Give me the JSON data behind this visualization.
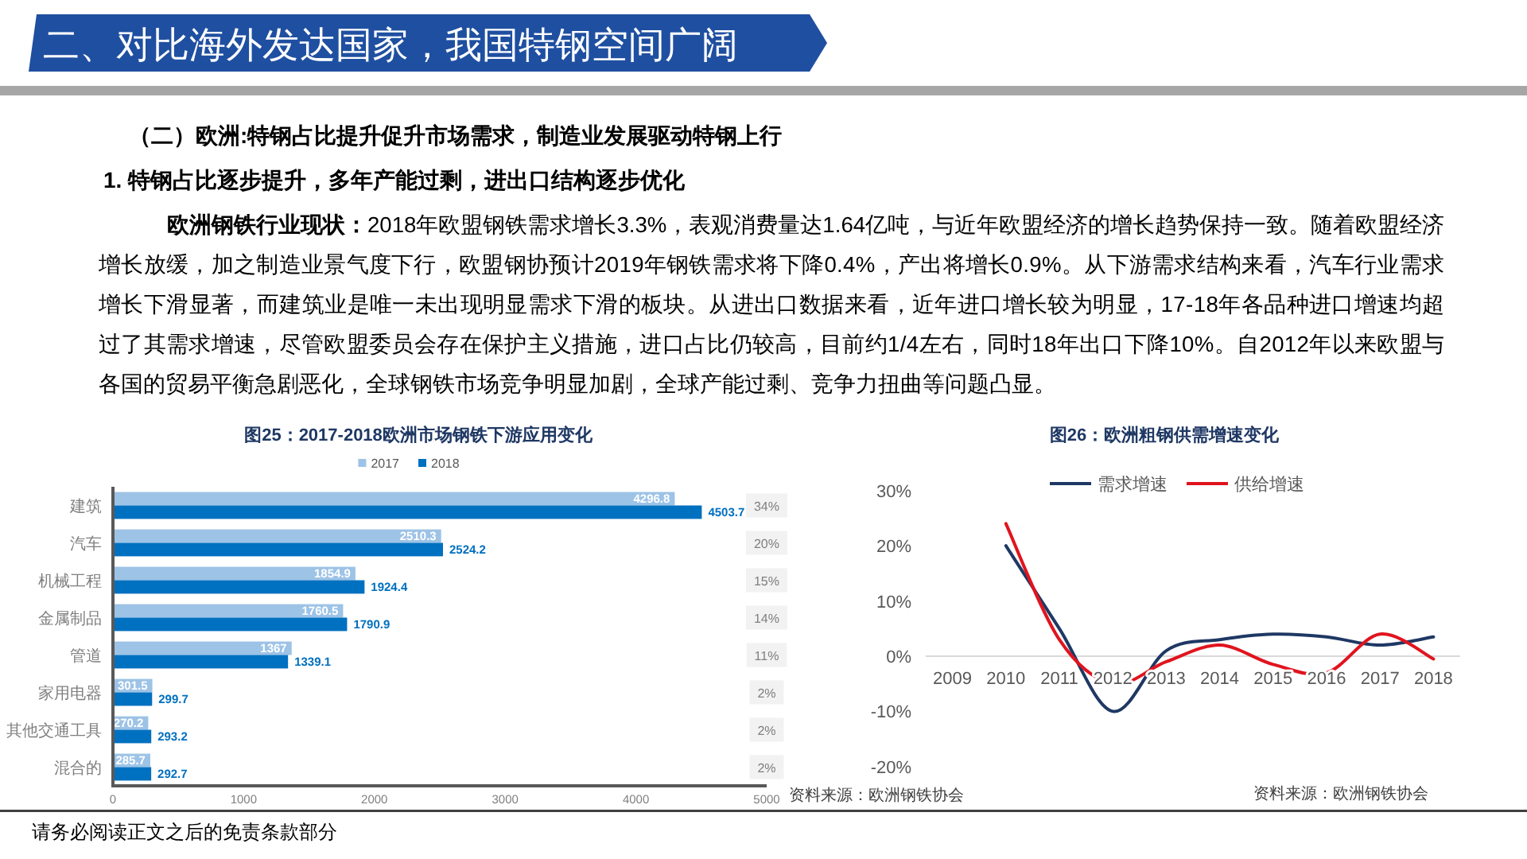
{
  "chart_data": [
    {
      "type": "other",
      "title": "二、对比海外发达国家，我国特钢空间广阔",
      "annotations": [
        "（二）欧洲:特钢占比提升促升市场需求，制造业发展驱动特钢上行",
        "1. 特钢占比逐步提升，多年产能过剩，进出口结构逐步优化",
        "欧洲钢铁行业现状：",
        "2018年欧盟钢铁需求增长3.3%，表观消费量达1.64亿吨，与近年欧盟经济的增长趋势保持一致。随着欧盟经济增长放缓，加之制造业景气度下行，欧盟钢协预计2019年钢铁需求将下降0.4%，产出将增长0.9%。从下游需求结构来看，汽车行业需求增长下滑显著，而建筑业是唯一未出现明显需求下滑的板块。从进出口数据来看，近年进口增长较为明显，17-18年各品种进口增速均超过了其需求增速，尽管欧盟委员会存在保护主义措施，进口占比仍较高，目前约1/4左右，同时18年出口下降10%。自2012年以来欧盟与各国的贸易平衡急剧恶化，全球钢铁市场竞争明显加剧，全球产能过剩、竞争力扭曲等问题凸显。",
        "请务必阅读正文之后的免责条款部分"
      ]
    },
    {
      "type": "bar",
      "orientation": "horizontal",
      "title": "图25：2017-2018欧洲市场钢铁下游应用变化",
      "categories": [
        "建筑",
        "汽车",
        "机械工程",
        "金属制品",
        "管道",
        "家用电器",
        "其他交通工具",
        "混合的"
      ],
      "series": [
        {
          "name": "2017",
          "color": "#9dc3e6",
          "values": [
            4296.8,
            2510.3,
            1854.9,
            1760.5,
            1367,
            301.5,
            270.2,
            285.7
          ]
        },
        {
          "name": "2018",
          "color": "#0070c0",
          "values": [
            4503.7,
            2524.2,
            1924.4,
            1790.9,
            1339.1,
            299.7,
            293.2,
            292.7
          ]
        }
      ],
      "xlim": [
        0,
        5000
      ],
      "xticks": [
        0,
        1000,
        2000,
        3000,
        4000,
        5000
      ],
      "data_labels": true,
      "legend": "top",
      "annotations": [
        {
          "text": "34%",
          "y": "建筑"
        },
        {
          "text": "20%",
          "y": "汽车"
        },
        {
          "text": "15%",
          "y": "机械工程"
        },
        {
          "text": "14%",
          "y": "金属制品"
        },
        {
          "text": "11%",
          "y": "管道"
        },
        {
          "text": "2%",
          "y": "家用电器"
        },
        {
          "text": "2%",
          "y": "其他交通工具"
        },
        {
          "text": "2%",
          "y": "混合的"
        },
        "资料来源：欧洲钢铁协会"
      ]
    },
    {
      "type": "line",
      "title": "图26：欧洲粗钢供需增速变化",
      "categories": [
        "2009",
        "2010",
        "2011",
        "2012",
        "2013",
        "2014",
        "2015",
        "2016",
        "2017",
        "2018"
      ],
      "series": [
        {
          "name": "需求增速",
          "color": "#1f3864",
          "values": [
            null,
            20,
            5,
            -10,
            1,
            3,
            4,
            3.5,
            2,
            3.5
          ]
        },
        {
          "name": "供给增速",
          "color": "#e0141e",
          "values": [
            null,
            24,
            3,
            -5,
            -1,
            2,
            -1.5,
            -3,
            4,
            -0.5
          ]
        }
      ],
      "ylim": [
        -20,
        30
      ],
      "yticks": [
        {
          "value": -20,
          "label": "-20%"
        },
        {
          "value": -10,
          "label": "-10%"
        },
        {
          "value": 0,
          "label": "0%"
        },
        {
          "value": 10,
          "label": "10%"
        },
        {
          "value": 20,
          "label": "20%"
        },
        {
          "value": 30,
          "label": "30%"
        }
      ],
      "legend": "top",
      "annotations": [
        "资料来源：欧洲钢铁协会"
      ]
    }
  ]
}
